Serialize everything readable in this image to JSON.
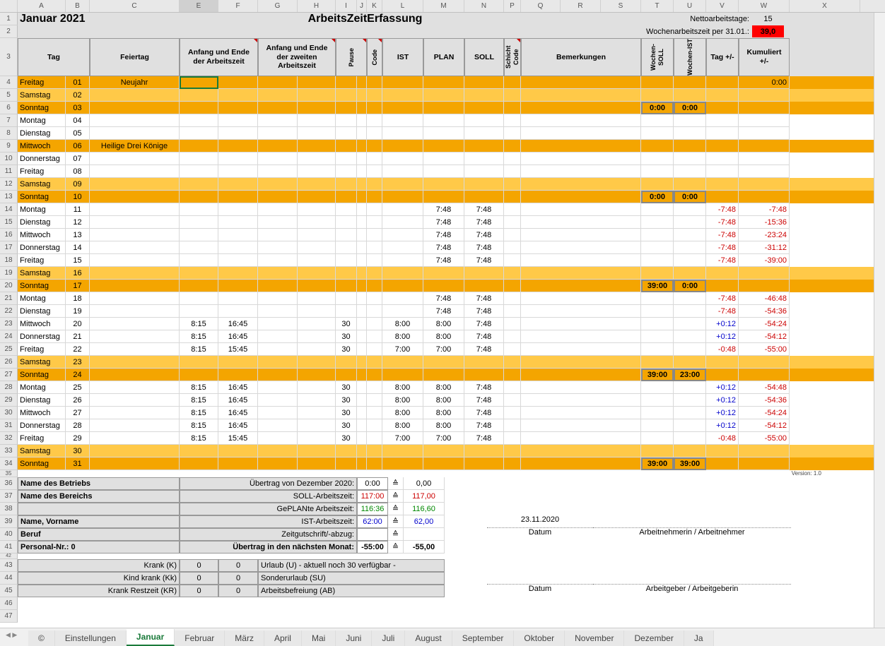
{
  "colHeaders": [
    "A",
    "B",
    "C",
    "E",
    "F",
    "G",
    "H",
    "I",
    "J",
    "K",
    "L",
    "M",
    "N",
    "P",
    "Q",
    "R",
    "S",
    "T",
    "U",
    "V",
    "W",
    "X"
  ],
  "monthTitle": "Januar 2021",
  "appTitle": "ArbeitsZeitErfassung",
  "nettoLabel": "Nettoarbeitstage:",
  "nettoValue": "15",
  "wazLabel": "Wochenarbeitszeit per 31.01.:",
  "wazValue": "39,0",
  "headers": {
    "tag": "Tag",
    "feiertag": "Feiertag",
    "anfang1": "Anfang und Ende der Arbeitszeit",
    "anfang2": "Anfang und Ende der zweiten Arbeitszeit",
    "pause": "Pause",
    "code": "Code",
    "ist": "IST",
    "plan": "PLAN",
    "soll": "SOLL",
    "schicht": "Schicht Code",
    "bem": "Bemerkungen",
    "wsoll": "Wochen-SOLL",
    "wist": "Wochen-IST",
    "tagpm": "Tag +/-",
    "kum": "Kumuliert +/-"
  },
  "days": [
    {
      "r": 4,
      "day": "Freitag",
      "n": "01",
      "feiertag": "Neujahr",
      "cls": "orange-dark",
      "kum": "0:00"
    },
    {
      "r": 5,
      "day": "Samstag",
      "n": "02",
      "cls": "orange-light"
    },
    {
      "r": 6,
      "day": "Sonntag",
      "n": "03",
      "cls": "orange-dark",
      "wsoll": "0:00",
      "wist": "0:00"
    },
    {
      "r": 7,
      "day": "Montag",
      "n": "04"
    },
    {
      "r": 8,
      "day": "Dienstag",
      "n": "05"
    },
    {
      "r": 9,
      "day": "Mittwoch",
      "n": "06",
      "feiertag": "Heilige Drei Könige",
      "cls": "orange-dark"
    },
    {
      "r": 10,
      "day": "Donnerstag",
      "n": "07"
    },
    {
      "r": 11,
      "day": "Freitag",
      "n": "08"
    },
    {
      "r": 12,
      "day": "Samstag",
      "n": "09",
      "cls": "orange-light"
    },
    {
      "r": 13,
      "day": "Sonntag",
      "n": "10",
      "cls": "orange-dark",
      "wsoll": "0:00",
      "wist": "0:00"
    },
    {
      "r": 14,
      "day": "Montag",
      "n": "11",
      "plan": "7:48",
      "soll": "7:48",
      "tag": "-7:48",
      "tagc": "red-text",
      "kum": "-7:48",
      "kumc": "red-text"
    },
    {
      "r": 15,
      "day": "Dienstag",
      "n": "12",
      "plan": "7:48",
      "soll": "7:48",
      "tag": "-7:48",
      "tagc": "red-text",
      "kum": "-15:36",
      "kumc": "red-text"
    },
    {
      "r": 16,
      "day": "Mittwoch",
      "n": "13",
      "plan": "7:48",
      "soll": "7:48",
      "tag": "-7:48",
      "tagc": "red-text",
      "kum": "-23:24",
      "kumc": "red-text"
    },
    {
      "r": 17,
      "day": "Donnerstag",
      "n": "14",
      "plan": "7:48",
      "soll": "7:48",
      "tag": "-7:48",
      "tagc": "red-text",
      "kum": "-31:12",
      "kumc": "red-text"
    },
    {
      "r": 18,
      "day": "Freitag",
      "n": "15",
      "plan": "7:48",
      "soll": "7:48",
      "tag": "-7:48",
      "tagc": "red-text",
      "kum": "-39:00",
      "kumc": "red-text"
    },
    {
      "r": 19,
      "day": "Samstag",
      "n": "16",
      "cls": "orange-light"
    },
    {
      "r": 20,
      "day": "Sonntag",
      "n": "17",
      "cls": "orange-dark",
      "wsoll": "39:00",
      "wist": "0:00"
    },
    {
      "r": 21,
      "day": "Montag",
      "n": "18",
      "plan": "7:48",
      "soll": "7:48",
      "tag": "-7:48",
      "tagc": "red-text",
      "kum": "-46:48",
      "kumc": "red-text"
    },
    {
      "r": 22,
      "day": "Dienstag",
      "n": "19",
      "plan": "7:48",
      "soll": "7:48",
      "tag": "-7:48",
      "tagc": "red-text",
      "kum": "-54:36",
      "kumc": "red-text"
    },
    {
      "r": 23,
      "day": "Mittwoch",
      "n": "20",
      "a1": "8:15",
      "a2": "16:45",
      "pause": "30",
      "ist": "8:00",
      "plan": "8:00",
      "soll": "7:48",
      "tag": "+0:12",
      "tagc": "blue-text",
      "kum": "-54:24",
      "kumc": "red-text"
    },
    {
      "r": 24,
      "day": "Donnerstag",
      "n": "21",
      "a1": "8:15",
      "a2": "16:45",
      "pause": "30",
      "ist": "8:00",
      "plan": "8:00",
      "soll": "7:48",
      "tag": "+0:12",
      "tagc": "blue-text",
      "kum": "-54:12",
      "kumc": "red-text"
    },
    {
      "r": 25,
      "day": "Freitag",
      "n": "22",
      "a1": "8:15",
      "a2": "15:45",
      "pause": "30",
      "ist": "7:00",
      "plan": "7:00",
      "soll": "7:48",
      "tag": "-0:48",
      "tagc": "red-text",
      "kum": "-55:00",
      "kumc": "red-text"
    },
    {
      "r": 26,
      "day": "Samstag",
      "n": "23",
      "cls": "orange-light"
    },
    {
      "r": 27,
      "day": "Sonntag",
      "n": "24",
      "cls": "orange-dark",
      "wsoll": "39:00",
      "wist": "23:00"
    },
    {
      "r": 28,
      "day": "Montag",
      "n": "25",
      "a1": "8:15",
      "a2": "16:45",
      "pause": "30",
      "ist": "8:00",
      "plan": "8:00",
      "soll": "7:48",
      "tag": "+0:12",
      "tagc": "blue-text",
      "kum": "-54:48",
      "kumc": "red-text"
    },
    {
      "r": 29,
      "day": "Dienstag",
      "n": "26",
      "a1": "8:15",
      "a2": "16:45",
      "pause": "30",
      "ist": "8:00",
      "plan": "8:00",
      "soll": "7:48",
      "tag": "+0:12",
      "tagc": "blue-text",
      "kum": "-54:36",
      "kumc": "red-text"
    },
    {
      "r": 30,
      "day": "Mittwoch",
      "n": "27",
      "a1": "8:15",
      "a2": "16:45",
      "pause": "30",
      "ist": "8:00",
      "plan": "8:00",
      "soll": "7:48",
      "tag": "+0:12",
      "tagc": "blue-text",
      "kum": "-54:24",
      "kumc": "red-text"
    },
    {
      "r": 31,
      "day": "Donnerstag",
      "n": "28",
      "a1": "8:15",
      "a2": "16:45",
      "pause": "30",
      "ist": "8:00",
      "plan": "8:00",
      "soll": "7:48",
      "tag": "+0:12",
      "tagc": "blue-text",
      "kum": "-54:12",
      "kumc": "red-text"
    },
    {
      "r": 32,
      "day": "Freitag",
      "n": "29",
      "a1": "8:15",
      "a2": "15:45",
      "pause": "30",
      "ist": "7:00",
      "plan": "7:00",
      "soll": "7:48",
      "tag": "-0:48",
      "tagc": "red-text",
      "kum": "-55:00",
      "kumc": "red-text"
    },
    {
      "r": 33,
      "day": "Samstag",
      "n": "30",
      "cls": "orange-light"
    },
    {
      "r": 34,
      "day": "Sonntag",
      "n": "31",
      "cls": "orange-dark",
      "wsoll": "39:00",
      "wist": "39:00"
    }
  ],
  "version": "Version: 1.0",
  "summary": {
    "betrieb": "Name des Betriebs",
    "bereich": "Name des Bereichs",
    "name": "Name, Vorname",
    "beruf": "Beruf",
    "pnr": "Personal-Nr.: 0",
    "rows": [
      {
        "label": "Übertrag von Dezember 2020:",
        "v1": "0:00",
        "v2": "0,00"
      },
      {
        "label": "SOLL-Arbeitszeit:",
        "v1": "117:00",
        "v2": "117,00",
        "c": "red-text"
      },
      {
        "label": "GePLANte Arbeitszeit:",
        "v1": "116:36",
        "v2": "116,60",
        "c": "green-text"
      },
      {
        "label": "IST-Arbeitszeit:",
        "v1": "62:00",
        "v2": "62,00",
        "c": "blue-text"
      },
      {
        "label": "Zeitgutschrift/-abzug:",
        "v1": "",
        "v2": ""
      },
      {
        "label": "Übertrag in den nächsten Monat:",
        "v1": "-55:00",
        "v2": "-55,00",
        "bold": true
      }
    ],
    "datum": "23.11.2020",
    "datumLabel": "Datum",
    "arbeitnehmer": "Arbeitnehmerin / Arbeitnehmer",
    "arbeitgeber": "Arbeitgeber / Arbeitgeberin"
  },
  "absence": [
    {
      "l": "Krank (K)",
      "v1": "0",
      "v2": "0",
      "r": "Urlaub (U)    - aktuell noch 30 verfügbar -"
    },
    {
      "l": "Kind krank (Kk)",
      "v1": "0",
      "v2": "0",
      "r": "Sonderurlaub (SU)"
    },
    {
      "l": "Krank Restzeit (KR)",
      "v1": "0",
      "v2": "0",
      "r": "Arbeitsbefreiung (AB)"
    }
  ],
  "tabs": [
    "©",
    "Einstellungen",
    "Januar",
    "Februar",
    "März",
    "April",
    "Mai",
    "Juni",
    "Juli",
    "August",
    "September",
    "Oktober",
    "November",
    "Dezember",
    "Ja"
  ],
  "activeTab": "Januar",
  "eq": "≙"
}
